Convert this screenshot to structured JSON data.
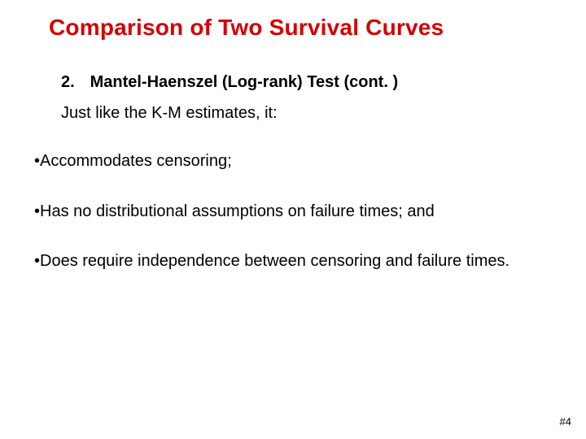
{
  "title": {
    "text": "Comparison of Two Survival Curves",
    "color": "#d40000",
    "fontsize": 28,
    "fontweight": "bold"
  },
  "subheading": {
    "number": "2.",
    "text": "Mantel-Haenszel (Log-rank) Test (cont. )",
    "fontsize": 20,
    "fontweight": "bold",
    "color": "#000000"
  },
  "lead": {
    "text": "Just like the K-M estimates, it:",
    "fontsize": 20,
    "color": "#000000"
  },
  "bullets": {
    "marker": "•",
    "fontsize": 20,
    "color": "#000000",
    "items": [
      "Accommodates censoring;",
      "Has no distributional assumptions on failure times; and",
      "Does require independence between censoring and failure times."
    ]
  },
  "slidenum": {
    "text": "#4",
    "fontsize": 13,
    "color": "#000000"
  },
  "background_color": "#ffffff"
}
